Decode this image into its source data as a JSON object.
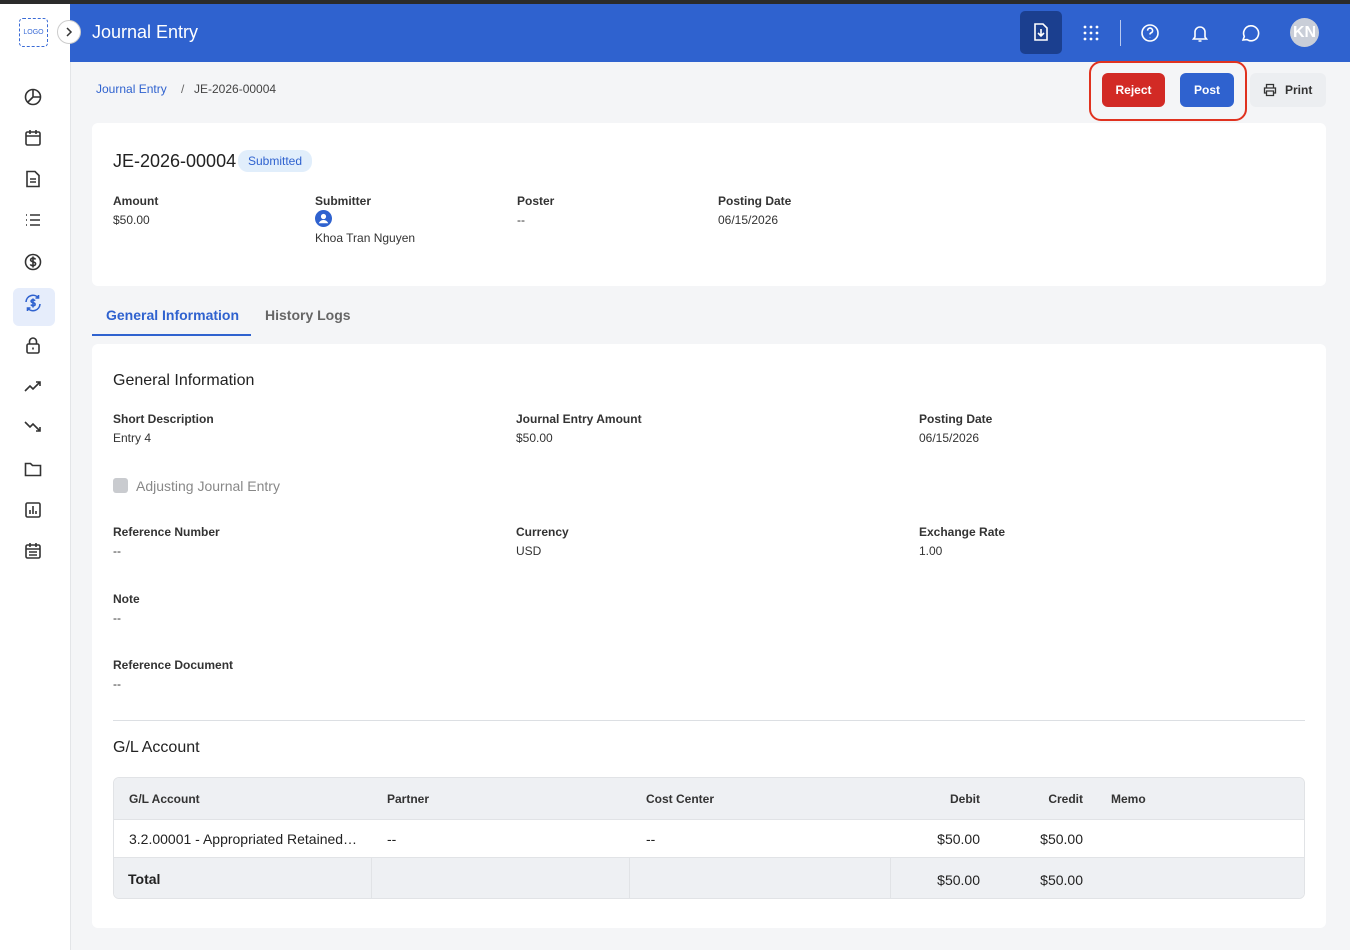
{
  "header": {
    "logo": "LOGO",
    "title": "Journal Entry",
    "avatar": "KN"
  },
  "breadcrumb": [
    "Journal Entry",
    "/",
    "JE-2026-00004"
  ],
  "actions": {
    "reject": "Reject",
    "post": "Post",
    "print": "Print"
  },
  "summary": {
    "id": "JE-2026-00004",
    "status": "Submitted",
    "fields": [
      {
        "label": "Amount",
        "value": "$50.00"
      },
      {
        "label": "Submitter",
        "value": "Khoa Tran Nguyen"
      },
      {
        "label": "Poster",
        "value": "--"
      },
      {
        "label": "Posting Date",
        "value": "06/15/2026"
      }
    ]
  },
  "tabs": [
    "General Information",
    "History Logs"
  ],
  "general": {
    "title": "General Information",
    "fields": [
      {
        "label": "Short Description",
        "value": "Entry 4"
      },
      {
        "label": "Journal Entry Amount",
        "value": "$50.00"
      },
      {
        "label": "Posting Date",
        "value": "06/15/2026"
      },
      {
        "label": "Reference Number",
        "value": "--"
      },
      {
        "label": "Currency",
        "value": "USD"
      },
      {
        "label": "Exchange Rate",
        "value": "1.00"
      },
      {
        "label": "Note",
        "value": "--"
      },
      {
        "label": "Reference Document",
        "value": "--"
      }
    ],
    "checkbox": "Adjusting Journal Entry"
  },
  "gl": {
    "title": "G/L Account",
    "columns": [
      "G/L Account",
      "Partner",
      "Cost Center",
      "Debit",
      "Credit",
      "Memo"
    ],
    "rows": [
      [
        "3.2.00001 - Appropriated Retained…",
        "--",
        "--",
        "$50.00",
        "$50.00"
      ]
    ],
    "total": {
      "label": "Total",
      "debit": "$50.00",
      "credit": "$50.00"
    }
  }
}
